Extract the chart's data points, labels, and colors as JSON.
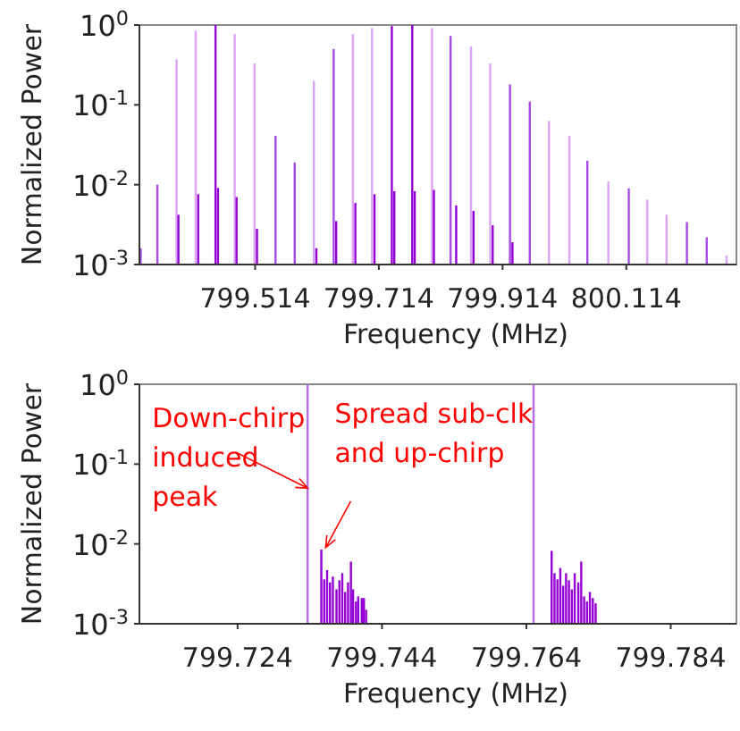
{
  "chart_data": [
    {
      "type": "bar",
      "xlabel": "Frequency (MHz)",
      "ylabel": "Normalized Power",
      "log": "y",
      "xlim": [
        799.327,
        800.292
      ],
      "xticks": [
        799.514,
        799.714,
        799.914,
        800.114
      ],
      "ylim": [
        0.001,
        1
      ],
      "yticks": [
        {
          "value": 0.001,
          "label": "10$^{-3}$"
        },
        {
          "value": 0.01,
          "label": "10$^{-2}$"
        },
        {
          "value": 0.1,
          "label": "10$^{-1}$"
        },
        {
          "value": 1,
          "label": "10$^{0}$"
        }
      ],
      "series": [
        {
          "x": [
            799.329,
            799.356,
            799.387,
            799.418,
            799.45,
            799.481,
            799.513,
            799.547,
            799.578,
            799.609,
            799.641,
            799.672,
            799.703,
            799.735,
            799.768,
            799.8,
            799.83,
            799.863,
            799.894,
            799.926,
            799.958,
            799.989,
            800.022,
            800.051,
            800.085,
            800.118,
            800.148,
            800.179,
            800.212,
            800.244,
            800.276
          ],
          "values": [
            0.0016,
            0.01,
            0.37,
            0.85,
            1.0,
            0.77,
            0.33,
            0.041,
            0.019,
            0.2,
            0.5,
            0.77,
            0.92,
            0.97,
            1.0,
            0.92,
            0.73,
            0.54,
            0.33,
            0.18,
            0.11,
            0.063,
            0.041,
            0.02,
            0.011,
            0.009,
            0.0065,
            0.0042,
            0.0034,
            0.0022,
            0.0013
          ],
          "colors": [
            "#a64ce6",
            "#a64ce6",
            "#dba4f5",
            "#dba4f5",
            "#9400d3",
            "#dba4f5",
            "#dba4f5",
            "#a64ce6",
            "#a64ce6",
            "#dba4f5",
            "#a64ce6",
            "#dba4f5",
            "#dba4f5",
            "#9400d3",
            "#9400d3",
            "#dba4f5",
            "#a64ce6",
            "#dba4f5",
            "#dba4f5",
            "#a64ce6",
            "#a64ce6",
            "#dba4f5",
            "#dba4f5",
            "#a64ce6",
            "#dba4f5",
            "#a64ce6",
            "#dba4f5",
            "#dba4f5",
            "#a64ce6",
            "#a64ce6",
            "#dba4f5"
          ]
        },
        {
          "color": "#9400d3",
          "x": [
            799.39,
            799.422,
            799.454,
            799.484,
            799.517,
            799.613,
            799.645,
            799.676,
            799.707,
            799.739,
            799.772,
            799.803,
            799.839,
            799.867,
            799.898,
            799.93
          ],
          "values": [
            0.0042,
            0.0076,
            0.0091,
            0.007,
            0.0028,
            0.0016,
            0.0035,
            0.0059,
            0.0076,
            0.0083,
            0.0083,
            0.0086,
            0.0055,
            0.0047,
            0.0031,
            0.0019
          ]
        }
      ]
    },
    {
      "type": "bar",
      "xlabel": "Frequency (MHz)",
      "ylabel": "Normalized Power",
      "log": "y",
      "xlim": [
        799.7104,
        799.7931
      ],
      "xticks": [
        799.724,
        799.744,
        799.764,
        799.784
      ],
      "ylim": [
        0.001,
        1
      ],
      "yticks": [
        {
          "value": 0.001,
          "label": "10$^{-3}$"
        },
        {
          "value": 0.01,
          "label": "10$^{-2}$"
        },
        {
          "value": 0.1,
          "label": "10$^{-1}$"
        },
        {
          "value": 1,
          "label": "10$^{0}$"
        }
      ],
      "annotations": [
        {
          "text": "Down-chirp\ninduced\npeak",
          "x": 799.7337,
          "y": 0.05
        },
        {
          "text": "Spread sub-clk\nand up-chirp",
          "x": 799.7362,
          "y": 0.009
        }
      ],
      "series": [
        {
          "color": "#b36be8",
          "x": [
            799.7337,
            799.765
          ],
          "values": [
            1,
            1
          ]
        },
        {
          "color": "#9400d3",
          "x": [
            799.7356,
            799.736,
            799.7364,
            799.7368,
            799.7372,
            799.7377,
            799.7381,
            799.7385,
            799.7389,
            799.7393,
            799.7397,
            799.74,
            799.7404,
            799.7407,
            799.7412,
            799.7415,
            799.7418,
            799.7675,
            799.7679,
            799.7683,
            799.7687,
            799.7691,
            799.7695,
            799.7699,
            799.7703,
            799.7707,
            799.7712,
            799.7716,
            799.772,
            799.7724,
            799.7728,
            799.7732,
            799.7736
          ],
          "values": [
            0.0085,
            0.0036,
            0.0047,
            0.0033,
            0.0039,
            0.0027,
            0.0035,
            0.0043,
            0.0025,
            0.0033,
            0.006,
            0.0027,
            0.0019,
            0.0022,
            0.0021,
            0.0021,
            0.0015,
            0.0082,
            0.0043,
            0.0036,
            0.005,
            0.003,
            0.0043,
            0.0035,
            0.0027,
            0.0043,
            0.0033,
            0.006,
            0.0022,
            0.0019,
            0.0025,
            0.0021,
            0.0018
          ]
        }
      ]
    }
  ]
}
